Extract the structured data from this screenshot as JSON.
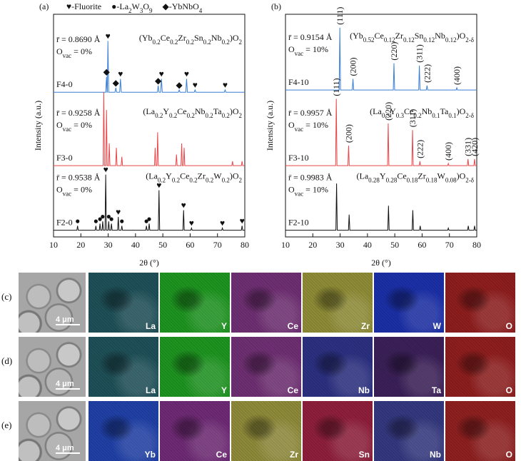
{
  "chart_data": [
    {
      "type": "line",
      "panel": "(a)",
      "x_label": "2θ (°)",
      "y_label": "Intensity (a.u.)",
      "xlim": [
        10,
        80
      ],
      "xticks": [
        10,
        20,
        30,
        40,
        50,
        60,
        70,
        80
      ],
      "ylim": [
        0,
        100
      ],
      "phase_legend": [
        "♥-Fluorite",
        "●-La2W3O9",
        "◆-YbNbO4"
      ],
      "series": [
        {
          "name": "F4-0",
          "color": "#3a7fd5",
          "formula": "(Yb0.2Ce0.2Zr0.2Sn0.2Nb0.2)O2",
          "radius": "r̄ = 0.8690 Å",
          "vacancy": "Ovac = 0%",
          "x": [
            10,
            29.1,
            29.4,
            29.6,
            29.7,
            29.9,
            30.2,
            32.5,
            32.8,
            33.1,
            34.2,
            34.5,
            34.8,
            48,
            48.3,
            48.6,
            49.2,
            49.5,
            49.8,
            55.7,
            56,
            56.3,
            58.4,
            58.7,
            59,
            61.5,
            61.8,
            62.1,
            72.5,
            72.8,
            73.1,
            80
          ],
          "values": [
            65,
            65,
            72,
            65,
            65,
            88,
            65,
            65,
            67,
            65,
            65,
            71,
            65,
            65,
            68,
            65,
            65,
            71,
            65,
            65,
            66,
            65,
            65,
            71,
            65,
            65,
            66,
            65,
            65,
            66,
            65,
            65
          ],
          "markers": [
            {
              "x": 29.4,
              "symbol": "◆"
            },
            {
              "x": 29.9,
              "symbol": "♥"
            },
            {
              "x": 32.8,
              "symbol": "◆"
            },
            {
              "x": 34.5,
              "symbol": "♥"
            },
            {
              "x": 48.3,
              "symbol": "◆"
            },
            {
              "x": 49.5,
              "symbol": "♥"
            },
            {
              "x": 56,
              "symbol": "◆"
            },
            {
              "x": 58.7,
              "symbol": "♥"
            },
            {
              "x": 61.8,
              "symbol": "♥"
            },
            {
              "x": 72.8,
              "symbol": "♥"
            }
          ]
        },
        {
          "name": "F3-0",
          "color": "#e8474a",
          "formula": "(La0.2Y0.2Ce0.2Nb0.2Ta0.2)O2",
          "radius": "r̄ = 0.9258 Å",
          "vacancy": "Ovac = 0%",
          "x": [
            10,
            28.15,
            28.4,
            28.65,
            29.15,
            29.4,
            29.65,
            30.15,
            30.4,
            30.65,
            32.75,
            33,
            33.25,
            34.75,
            35,
            35.25,
            46.95,
            47.2,
            47.45,
            47.85,
            48.1,
            48.35,
            54.75,
            55,
            55.25,
            56.65,
            56.9,
            57.15,
            57.55,
            57.8,
            58.05,
            75.25,
            75.5,
            75.75,
            78.75,
            79,
            79.25,
            80
          ],
          "values": [
            32,
            32,
            65,
            32,
            32,
            57,
            32,
            32,
            42,
            32,
            32,
            40,
            32,
            32,
            36,
            32,
            32,
            40,
            32,
            32,
            47,
            32,
            32,
            37,
            32,
            32,
            42,
            32,
            32,
            40,
            32,
            32,
            34,
            32,
            32,
            34,
            32,
            32
          ]
        },
        {
          "name": "F2-0",
          "color": "#111111",
          "formula": "(La0.2Y0.2Ce0.2Zr0.2W0.2)O2",
          "radius": "r̄ = 0.9538 Å",
          "vacancy": "Ovac = 0%",
          "x": [
            10,
            18.55,
            18.8,
            19.05,
            25.25,
            25.5,
            25.75,
            26.75,
            27,
            27.25,
            27.75,
            28,
            28.25,
            28.85,
            29.1,
            29.35,
            29.95,
            30.2,
            30.45,
            30.95,
            31.2,
            31.45,
            33.45,
            33.7,
            33.95,
            34.75,
            35,
            35.25,
            43.75,
            44,
            44.25,
            44.75,
            45,
            45.25,
            48.35,
            48.6,
            48.85,
            57.35,
            57.6,
            57.85,
            60.25,
            60.5,
            60.75,
            71.55,
            71.8,
            72.05,
            78.75,
            79,
            79.25,
            80
          ],
          "values": [
            3,
            3,
            5,
            3,
            3,
            5,
            3,
            3,
            6,
            3,
            3,
            7,
            3,
            3,
            28,
            3,
            3,
            7,
            3,
            3,
            6,
            3,
            3,
            9,
            3,
            3,
            5,
            3,
            3,
            5,
            3,
            3,
            6,
            3,
            3,
            21,
            3,
            3,
            12,
            3,
            3,
            4,
            3,
            3,
            4,
            3,
            3,
            5,
            3,
            3
          ],
          "markers": [
            {
              "x": 18.8,
              "symbol": "●"
            },
            {
              "x": 25.5,
              "symbol": "●"
            },
            {
              "x": 27,
              "symbol": "●"
            },
            {
              "x": 28,
              "symbol": "●"
            },
            {
              "x": 29.1,
              "symbol": "♥"
            },
            {
              "x": 30.2,
              "symbol": "●"
            },
            {
              "x": 31.2,
              "symbol": "●"
            },
            {
              "x": 33.7,
              "symbol": "♥"
            },
            {
              "x": 35,
              "symbol": "●"
            },
            {
              "x": 44,
              "symbol": "●"
            },
            {
              "x": 45,
              "symbol": "●"
            },
            {
              "x": 48.6,
              "symbol": "♥"
            },
            {
              "x": 57.6,
              "symbol": "♥"
            },
            {
              "x": 60.5,
              "symbol": "♥"
            },
            {
              "x": 71.8,
              "symbol": "♥"
            },
            {
              "x": 79,
              "symbol": "♥"
            }
          ]
        }
      ]
    },
    {
      "type": "line",
      "panel": "(b)",
      "x_label": "2θ (°)",
      "y_label": "Intensity (a.u.)",
      "xlim": [
        10,
        80
      ],
      "xticks": [
        10,
        20,
        30,
        40,
        50,
        60,
        70,
        80
      ],
      "ylim": [
        0,
        100
      ],
      "series": [
        {
          "name": "F4-10",
          "color": "#3a7fd5",
          "formula": "(Yb0.52Ce0.12Zr0.12Sn0.12Nb0.12)O2-δ",
          "radius": "r̄ = 0.9154 Å",
          "vacancy": "Ovac = 10%",
          "x": [
            10,
            29.65,
            29.9,
            30.15,
            34.45,
            34.7,
            34.95,
            49.45,
            49.7,
            49.95,
            58.75,
            59,
            59.25,
            61.55,
            61.8,
            62.05,
            72.45,
            72.7,
            72.95,
            80
          ],
          "values": [
            66,
            66,
            94,
            66,
            66,
            71,
            66,
            66,
            78,
            66,
            66,
            77,
            66,
            66,
            68,
            66,
            66,
            67,
            66,
            66
          ],
          "peak_labels": [
            {
              "x": 29.9,
              "label": "(111)"
            },
            {
              "x": 34.7,
              "label": "(200)"
            },
            {
              "x": 49.7,
              "label": "(220)"
            },
            {
              "x": 59,
              "label": "(311)"
            },
            {
              "x": 61.8,
              "label": "(222)"
            },
            {
              "x": 72.7,
              "label": "(400)"
            }
          ]
        },
        {
          "name": "F3-10",
          "color": "#e8474a",
          "formula": "(La0.3Y0.3Ce0.2Nb0.1Ta0.1)O2-δ",
          "radius": "r̄ = 0.9957 Å",
          "vacancy": "Ovac = 10%",
          "x": [
            10,
            28.35,
            28.6,
            28.85,
            32.85,
            33.1,
            33.35,
            47.35,
            47.6,
            47.85,
            56.25,
            56.5,
            56.75,
            58.95,
            59.2,
            59.45,
            69.35,
            69.6,
            69.85,
            76.55,
            76.8,
            77.05,
            78.95,
            79.2,
            79.45,
            80
          ],
          "values": [
            32,
            32,
            62,
            32,
            32,
            41,
            32,
            32,
            51,
            32,
            32,
            48,
            32,
            32,
            34,
            32,
            32,
            33,
            32,
            32,
            35,
            32,
            32,
            35,
            32,
            32
          ],
          "peak_labels": [
            {
              "x": 28.6,
              "label": "(111)"
            },
            {
              "x": 33.1,
              "label": "(200)"
            },
            {
              "x": 47.6,
              "label": "(220)"
            },
            {
              "x": 56.5,
              "label": "(311)"
            },
            {
              "x": 59.2,
              "label": "(222)"
            },
            {
              "x": 69.6,
              "label": "(400)"
            },
            {
              "x": 76.8,
              "label": "(331)"
            },
            {
              "x": 79.2,
              "label": "(420)"
            }
          ]
        },
        {
          "name": "F2-10",
          "color": "#111111",
          "formula": "(La0.28Y0.28Ce0.18Zr0.18W0.08)O2-δ",
          "radius": "r̄ = 0.9983 Å",
          "vacancy": "Ovac = 10%",
          "x": [
            10,
            28.45,
            28.7,
            28.95,
            33.05,
            33.3,
            33.55,
            47.45,
            47.7,
            47.95,
            56.35,
            56.6,
            56.85,
            59.05,
            59.3,
            59.55,
            69.35,
            69.6,
            69.85,
            76.65,
            76.9,
            77.15,
            78.95,
            79.2,
            79.45,
            80
          ],
          "values": [
            3,
            3,
            24,
            3,
            3,
            10,
            3,
            3,
            14,
            3,
            3,
            12,
            3,
            3,
            5,
            3,
            3,
            4,
            3,
            3,
            5,
            3,
            3,
            5,
            3,
            3
          ]
        }
      ]
    }
  ],
  "eds_maps": {
    "rows": [
      {
        "label": "(c)",
        "scale_bar": "4 μm",
        "maps": [
          {
            "element": "La",
            "color": "#1f5058"
          },
          {
            "element": "Y",
            "color": "#1e9420"
          },
          {
            "element": "Ce",
            "color": "#6e2f72"
          },
          {
            "element": "Zr",
            "color": "#8e8c36"
          },
          {
            "element": "W",
            "color": "#1b2fa6"
          },
          {
            "element": "O",
            "color": "#8e1e1e"
          }
        ]
      },
      {
        "label": "(d)",
        "scale_bar": "4 μm",
        "maps": [
          {
            "element": "La",
            "color": "#1f5058"
          },
          {
            "element": "Y",
            "color": "#1e9420"
          },
          {
            "element": "Ce",
            "color": "#6e2f72"
          },
          {
            "element": "Nb",
            "color": "#2b3080"
          },
          {
            "element": "Ta",
            "color": "#3b2058"
          },
          {
            "element": "O",
            "color": "#8e1e1e"
          }
        ]
      },
      {
        "label": "(e)",
        "scale_bar": "4 μm",
        "maps": [
          {
            "element": "Yb",
            "color": "#2040a6"
          },
          {
            "element": "Ce",
            "color": "#6e2a74"
          },
          {
            "element": "Zr",
            "color": "#8e8a3a"
          },
          {
            "element": "Sn",
            "color": "#8e1f3c"
          },
          {
            "element": "Nb",
            "color": "#34387e"
          },
          {
            "element": "O",
            "color": "#8e2020"
          }
        ]
      }
    ]
  }
}
